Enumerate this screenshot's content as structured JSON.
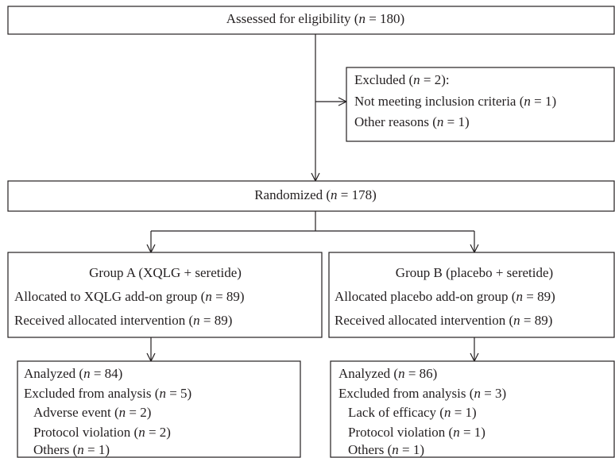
{
  "nodes": [
    {
      "lines": [
        "Assessed for eligibility (n = 180)"
      ]
    },
    {
      "lines": [
        "Excluded (n = 2):",
        "Not meeting inclusion criteria (n = 1)",
        "Other reasons (n = 1)"
      ]
    },
    {
      "lines": [
        "Randomized (n = 178)"
      ]
    },
    {
      "lines": [
        "Group A (XQLG + seretide)",
        "Allocated to XQLG add-on group (n = 89)",
        "Received allocated intervention (n = 89)"
      ]
    },
    {
      "lines": [
        "Group B (placebo + seretide)",
        "Allocated placebo add-on group (n = 89)",
        "Received allocated intervention (n = 89)"
      ]
    },
    {
      "lines": [
        "Analyzed (n = 84)",
        "Excluded from analysis (n = 5)",
        "Adverse event (n = 2)",
        "Protocol violation (n = 2)",
        "Others (n = 1)"
      ]
    },
    {
      "lines": [
        "Analyzed (n = 86)",
        "Excluded from analysis (n = 3)",
        "Lack of efficacy (n = 1)",
        "Protocol violation (n = 1)",
        "Others (n = 1)"
      ]
    }
  ]
}
